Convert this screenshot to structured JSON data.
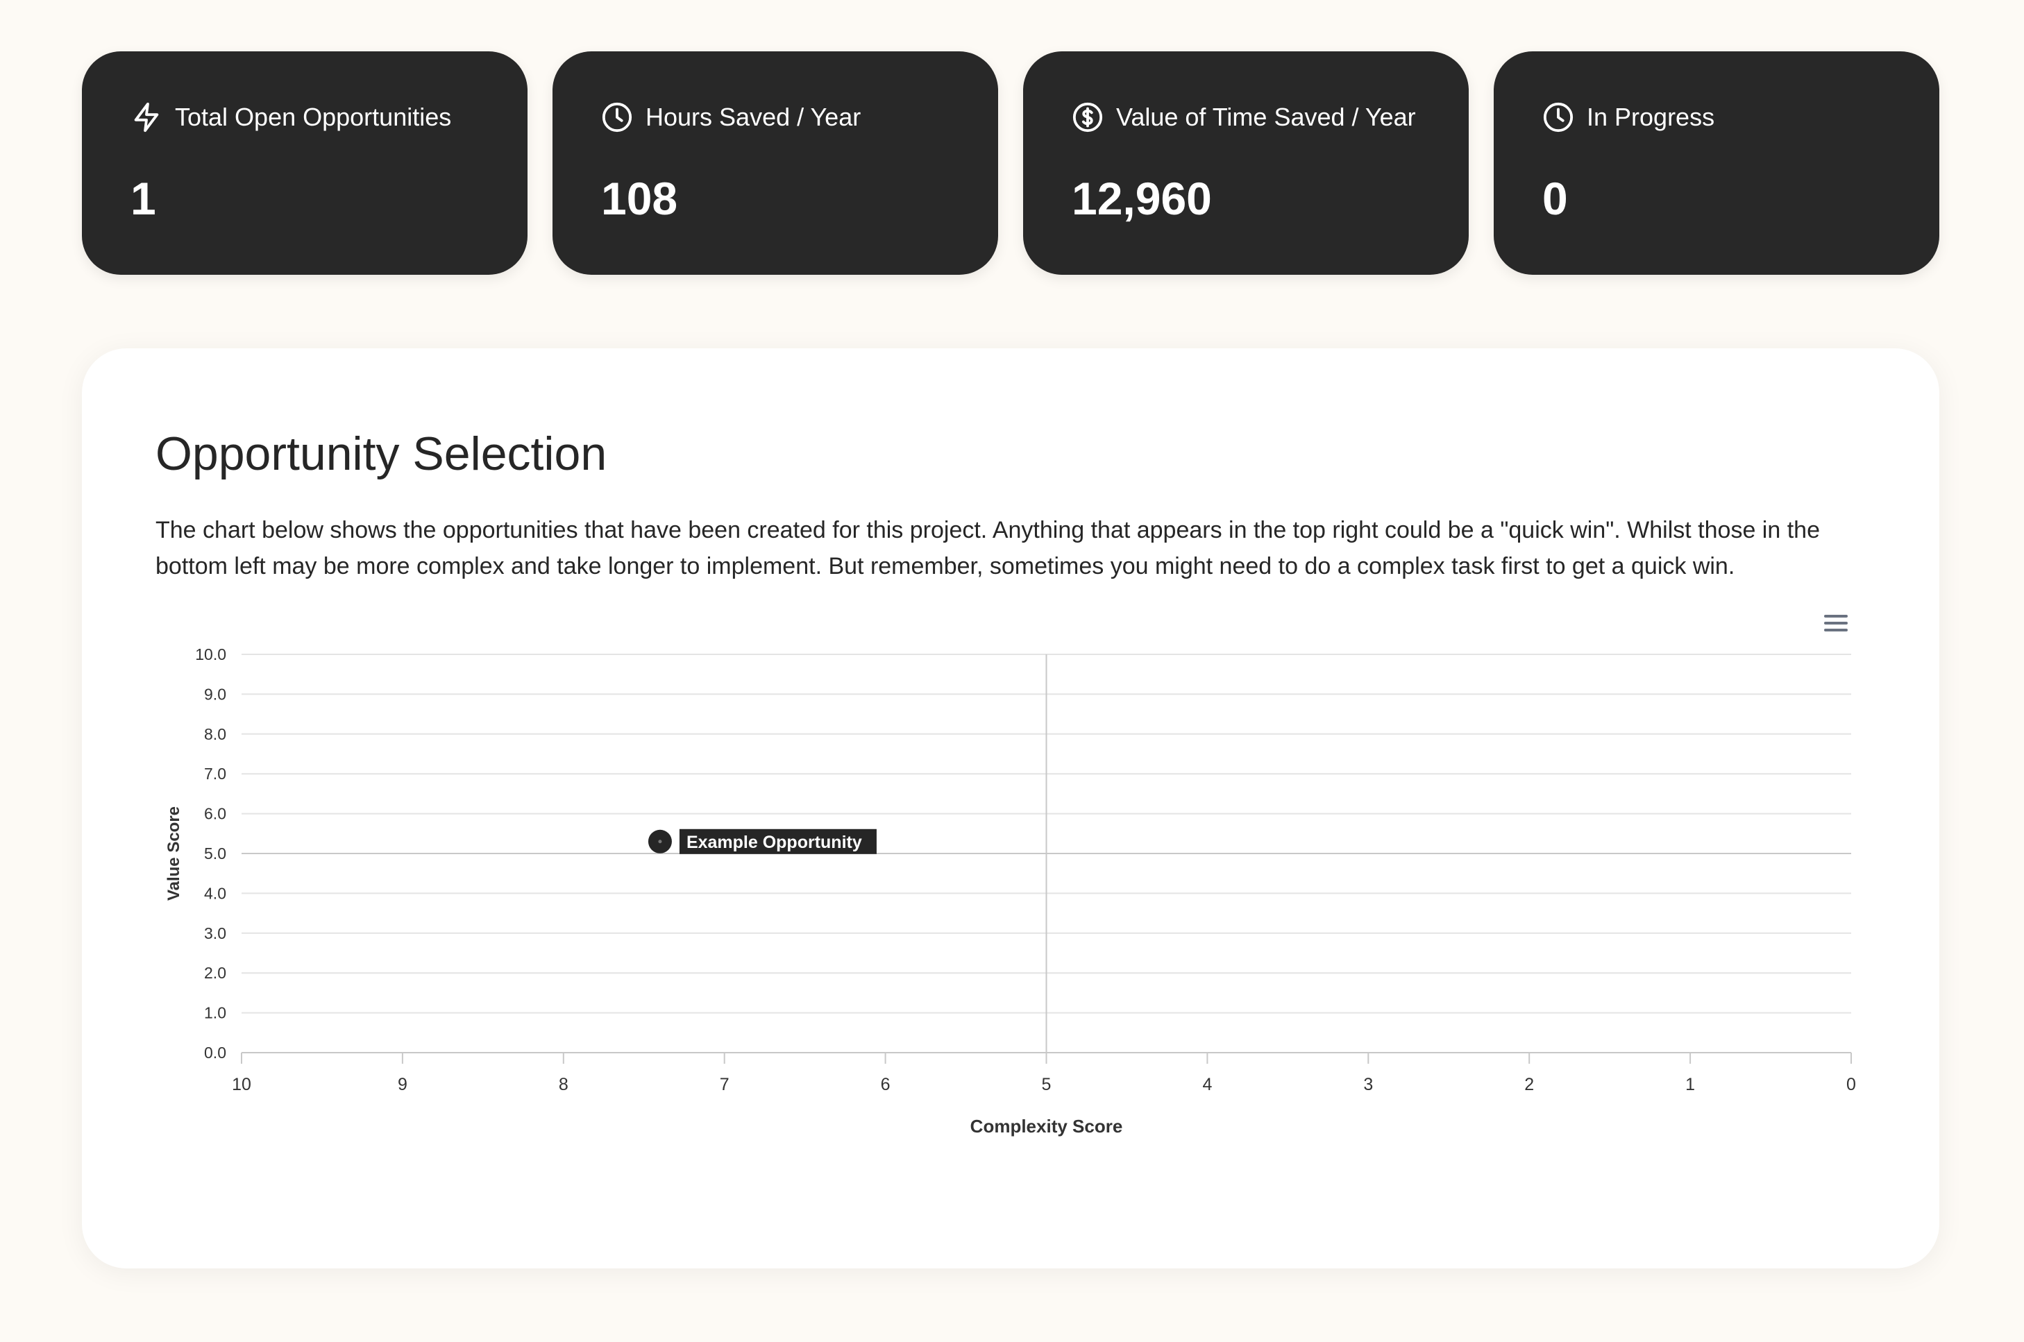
{
  "stats": [
    {
      "label": "Total Open Opportunities",
      "value": "1",
      "icon": "lightning-icon"
    },
    {
      "label": "Hours Saved / Year",
      "value": "108",
      "icon": "clock-icon"
    },
    {
      "label": "Value of Time Saved / Year",
      "value": "12,960",
      "icon": "dollar-circle-icon"
    },
    {
      "label": "In Progress",
      "value": "0",
      "icon": "clock-icon"
    }
  ],
  "panel": {
    "title": "Opportunity Selection",
    "description": "The chart below shows the opportunities that have been created for this project. Anything that appears in the top right could be a \"quick win\". Whilst those in the bottom left may be more complex and take longer to implement. But remember, sometimes you might need to do a complex task first to get a quick win.",
    "menu_icon": "hamburger-menu-icon"
  },
  "chart_data": {
    "type": "scatter",
    "xlabel": "Complexity Score",
    "ylabel": "Value Score",
    "xlim": [
      10,
      0
    ],
    "x_reversed": true,
    "ylim": [
      0,
      10
    ],
    "x_ticks": [
      "10",
      "9",
      "8",
      "7",
      "6",
      "5",
      "4",
      "3",
      "2",
      "1",
      "0"
    ],
    "y_ticks": [
      "0.0",
      "1.0",
      "2.0",
      "3.0",
      "4.0",
      "5.0",
      "6.0",
      "7.0",
      "8.0",
      "9.0",
      "10.0"
    ],
    "quadrant_lines": {
      "x": 5,
      "y": 5
    },
    "grid": true,
    "points": [
      {
        "label": "Example Opportunity",
        "x": 7.4,
        "y": 5.3
      }
    ],
    "point_color": "#262626",
    "grid_color": "#e4e4e4",
    "axis_color": "#c8c8c8"
  }
}
